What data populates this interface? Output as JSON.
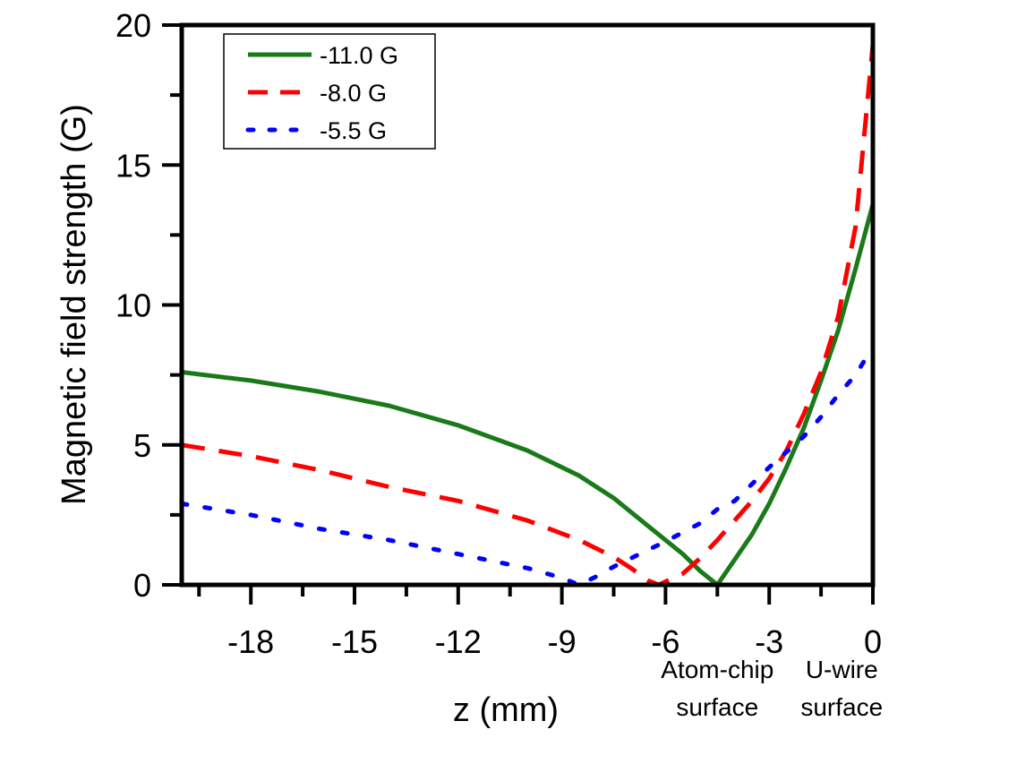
{
  "chart_data": {
    "type": "line",
    "title": "",
    "xlabel": "z (mm)",
    "ylabel": "Magnetic field strength (G)",
    "xlim": [
      -20,
      0
    ],
    "ylim": [
      0,
      20
    ],
    "xticks": [
      -18,
      -15,
      -12,
      -9,
      -6,
      -3,
      0
    ],
    "yticks": [
      0,
      5,
      10,
      15,
      20
    ],
    "grid": false,
    "legend_position": "top-left",
    "annotations": [
      {
        "x": -4.5,
        "lines": [
          "Atom-chip",
          "surface"
        ]
      },
      {
        "x": -0.9,
        "lines": [
          "U-wire",
          "surface"
        ]
      }
    ],
    "series": [
      {
        "name": "-11.0 G",
        "color": "#1a7a1a",
        "style": "solid",
        "x": [
          -20,
          -18,
          -16,
          -14,
          -12,
          -10,
          -8.5,
          -7.5,
          -6.5,
          -5.5,
          -5.0,
          -4.5,
          -4.0,
          -3.5,
          -3.0,
          -2.5,
          -2.0,
          -1.5,
          -1.0,
          -0.5,
          0
        ],
        "y": [
          7.6,
          7.3,
          6.9,
          6.4,
          5.7,
          4.8,
          3.9,
          3.1,
          2.1,
          1.1,
          0.5,
          0.0,
          0.9,
          1.8,
          2.9,
          4.2,
          5.6,
          7.3,
          9.1,
          11.3,
          13.6
        ]
      },
      {
        "name": "-8.0 G",
        "color": "#ff0000",
        "style": "dashed",
        "x": [
          -20,
          -18,
          -16,
          -14,
          -12,
          -10,
          -8.5,
          -7.5,
          -7.0,
          -6.5,
          -6.2,
          -5.5,
          -5.0,
          -4.5,
          -4.0,
          -3.5,
          -3.0,
          -2.5,
          -2.0,
          -1.5,
          -1.0,
          -0.5,
          0
        ],
        "y": [
          5.0,
          4.6,
          4.1,
          3.5,
          3.0,
          2.3,
          1.6,
          1.0,
          0.6,
          0.15,
          0.0,
          0.4,
          0.95,
          1.6,
          2.3,
          3.0,
          3.8,
          4.8,
          6.1,
          7.6,
          9.6,
          12.8,
          19.3
        ]
      },
      {
        "name": "-5.5 G",
        "color": "#0000ff",
        "style": "dotted",
        "x": [
          -20,
          -18,
          -16,
          -14,
          -12,
          -10,
          -9.0,
          -8.5,
          -8.0,
          -7.5,
          -7.0,
          -6.5,
          -6.0,
          -5.0,
          -4.5,
          -4.0,
          -3.0,
          -2.0,
          -1.5,
          -1.0,
          -0.5,
          0
        ],
        "y": [
          2.9,
          2.5,
          2.0,
          1.6,
          1.1,
          0.6,
          0.25,
          0.0,
          0.3,
          0.65,
          0.95,
          1.25,
          1.55,
          2.2,
          2.7,
          3.0,
          4.2,
          5.3,
          6.0,
          6.8,
          7.5,
          8.5
        ]
      }
    ]
  }
}
